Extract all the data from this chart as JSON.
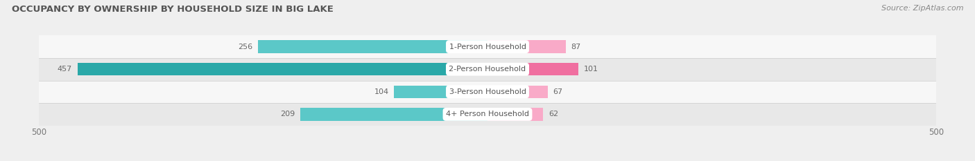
{
  "title": "OCCUPANCY BY OWNERSHIP BY HOUSEHOLD SIZE IN BIG LAKE",
  "source": "Source: ZipAtlas.com",
  "categories": [
    "1-Person Household",
    "2-Person Household",
    "3-Person Household",
    "4+ Person Household"
  ],
  "owner_values": [
    256,
    457,
    104,
    209
  ],
  "renter_values": [
    87,
    101,
    67,
    62
  ],
  "owner_colors": [
    "#5bc8c8",
    "#2aa8a8",
    "#5bc8c8",
    "#5bc8c8"
  ],
  "renter_colors": [
    "#f9aac8",
    "#f06fa0",
    "#f9aac8",
    "#f9aac8"
  ],
  "axis_max": 500,
  "bg_color": "#efefef",
  "row_bg_colors": [
    "#f7f7f7",
    "#e8e8e8",
    "#f7f7f7",
    "#e8e8e8"
  ],
  "label_color": "#666666",
  "title_color": "#555555",
  "source_color": "#888888",
  "center_label_color": "#555555",
  "legend_owner_color": "#5bc8c8",
  "legend_renter_color": "#f9aac8"
}
